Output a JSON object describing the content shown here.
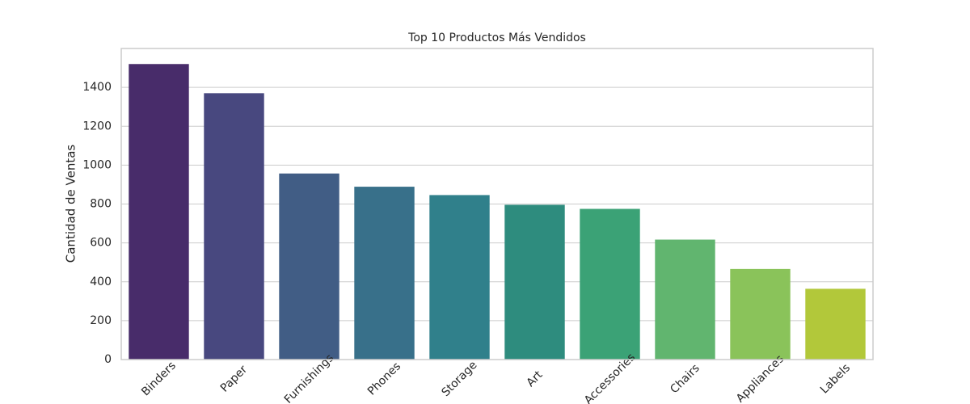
{
  "chart_data": {
    "type": "bar",
    "title": "Top 10 Productos Más Vendidos",
    "y_label": "Cantidad de Ventas",
    "categories": [
      "Binders",
      "Paper",
      "Furnishings",
      "Phones",
      "Storage",
      "Art",
      "Accessories",
      "Chairs",
      "Appliances",
      "Labels"
    ],
    "values": [
      1520,
      1370,
      957,
      889,
      846,
      796,
      775,
      617,
      466,
      364
    ],
    "colors": [
      "#482c6a",
      "#48487f",
      "#415d85",
      "#38708a",
      "#30808b",
      "#2e8c7e",
      "#3ba276",
      "#61b56f",
      "#8ac35a",
      "#b2c83a"
    ],
    "ylim": [
      0,
      1600
    ],
    "yticks": [
      0,
      200,
      400,
      600,
      800,
      1000,
      1200,
      1400
    ],
    "grid": true
  }
}
